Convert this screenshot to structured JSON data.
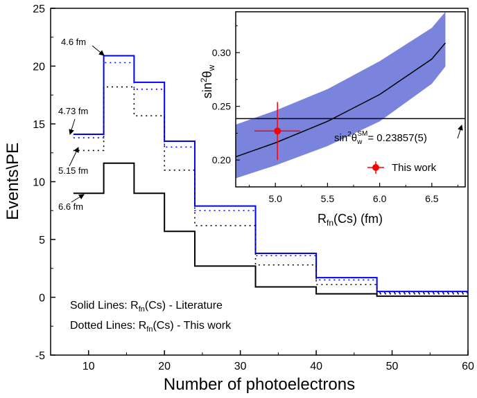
{
  "chart_data": [
    {
      "type": "line",
      "subtype": "step",
      "xlabel": "Number of photoelectrons",
      "ylabel": "Events\\PE",
      "xlim": [
        5,
        60
      ],
      "ylim": [
        -5,
        25
      ],
      "xticks": [
        "10",
        "20",
        "30",
        "40",
        "50",
        "60"
      ],
      "yticks": [
        "-5",
        "0",
        "5",
        "10",
        "15",
        "20",
        "25"
      ],
      "bin_edges": [
        8,
        12,
        16,
        20,
        24,
        32,
        40,
        48,
        60
      ],
      "series": [
        {
          "label": "4.6 fm",
          "style": "solid",
          "color": "#0000ff",
          "values": [
            14.1,
            20.9,
            18.6,
            13.5,
            7.9,
            3.8,
            1.7,
            0.5
          ]
        },
        {
          "label": "4.73 fm",
          "style": "dotted",
          "color": "#0000ff",
          "values": [
            13.8,
            20.3,
            18.0,
            13.0,
            7.5,
            3.6,
            1.5,
            0.4
          ]
        },
        {
          "label": "5.15 fm",
          "style": "dotted",
          "color": "#000000",
          "values": [
            12.7,
            18.2,
            15.7,
            11.0,
            6.2,
            2.8,
            1.1,
            0.3
          ]
        },
        {
          "label": "6.6 fm",
          "style": "solid",
          "color": "#000000",
          "values": [
            9.0,
            11.6,
            9.0,
            5.7,
            2.7,
            0.9,
            0.3,
            0.1
          ]
        }
      ],
      "annotations": [
        "Solid Lines: R",
        "fn",
        "(Cs) - Literature",
        "Dotted Lines: R",
        "(Cs) - This work"
      ]
    },
    {
      "type": "line",
      "role": "inset",
      "xlabel": "R",
      "xlabel_sub": "fn",
      "xlabel_rest": "(Cs) (fm)",
      "ylabel": "sin",
      "ylabel_sup": "2",
      "ylabel_theta": "θ",
      "ylabel_sub": "w",
      "xlim": [
        4.62,
        6.82
      ],
      "ylim": [
        0.175,
        0.338
      ],
      "xticks": [
        "5.0",
        "5.5",
        "6.0",
        "6.5"
      ],
      "yticks": [
        "0.20",
        "0.25",
        "0.30"
      ],
      "curve": {
        "x": [
          4.62,
          5.0,
          5.5,
          6.0,
          6.5,
          6.63
        ],
        "y": [
          0.203,
          0.216,
          0.236,
          0.261,
          0.294,
          0.309
        ]
      },
      "band": {
        "x": [
          4.62,
          5.0,
          5.5,
          6.0,
          6.5,
          6.63
        ],
        "lower": [
          0.183,
          0.195,
          0.213,
          0.236,
          0.271,
          0.287
        ],
        "upper": [
          0.233,
          0.246,
          0.266,
          0.292,
          0.323,
          0.338
        ],
        "color": "#7b84dd"
      },
      "sm_line": {
        "y": 0.23857,
        "label_sin": "sin",
        "label_sup": "2",
        "label_theta": "θ",
        "label_sub": "w",
        "label_sup2": "SM",
        "label_value": "= 0.23857(5)"
      },
      "point": {
        "x": 5.02,
        "y": 0.227,
        "xerr": 0.22,
        "yerr": 0.027,
        "color": "#ff0000",
        "label": "This work"
      }
    }
  ]
}
